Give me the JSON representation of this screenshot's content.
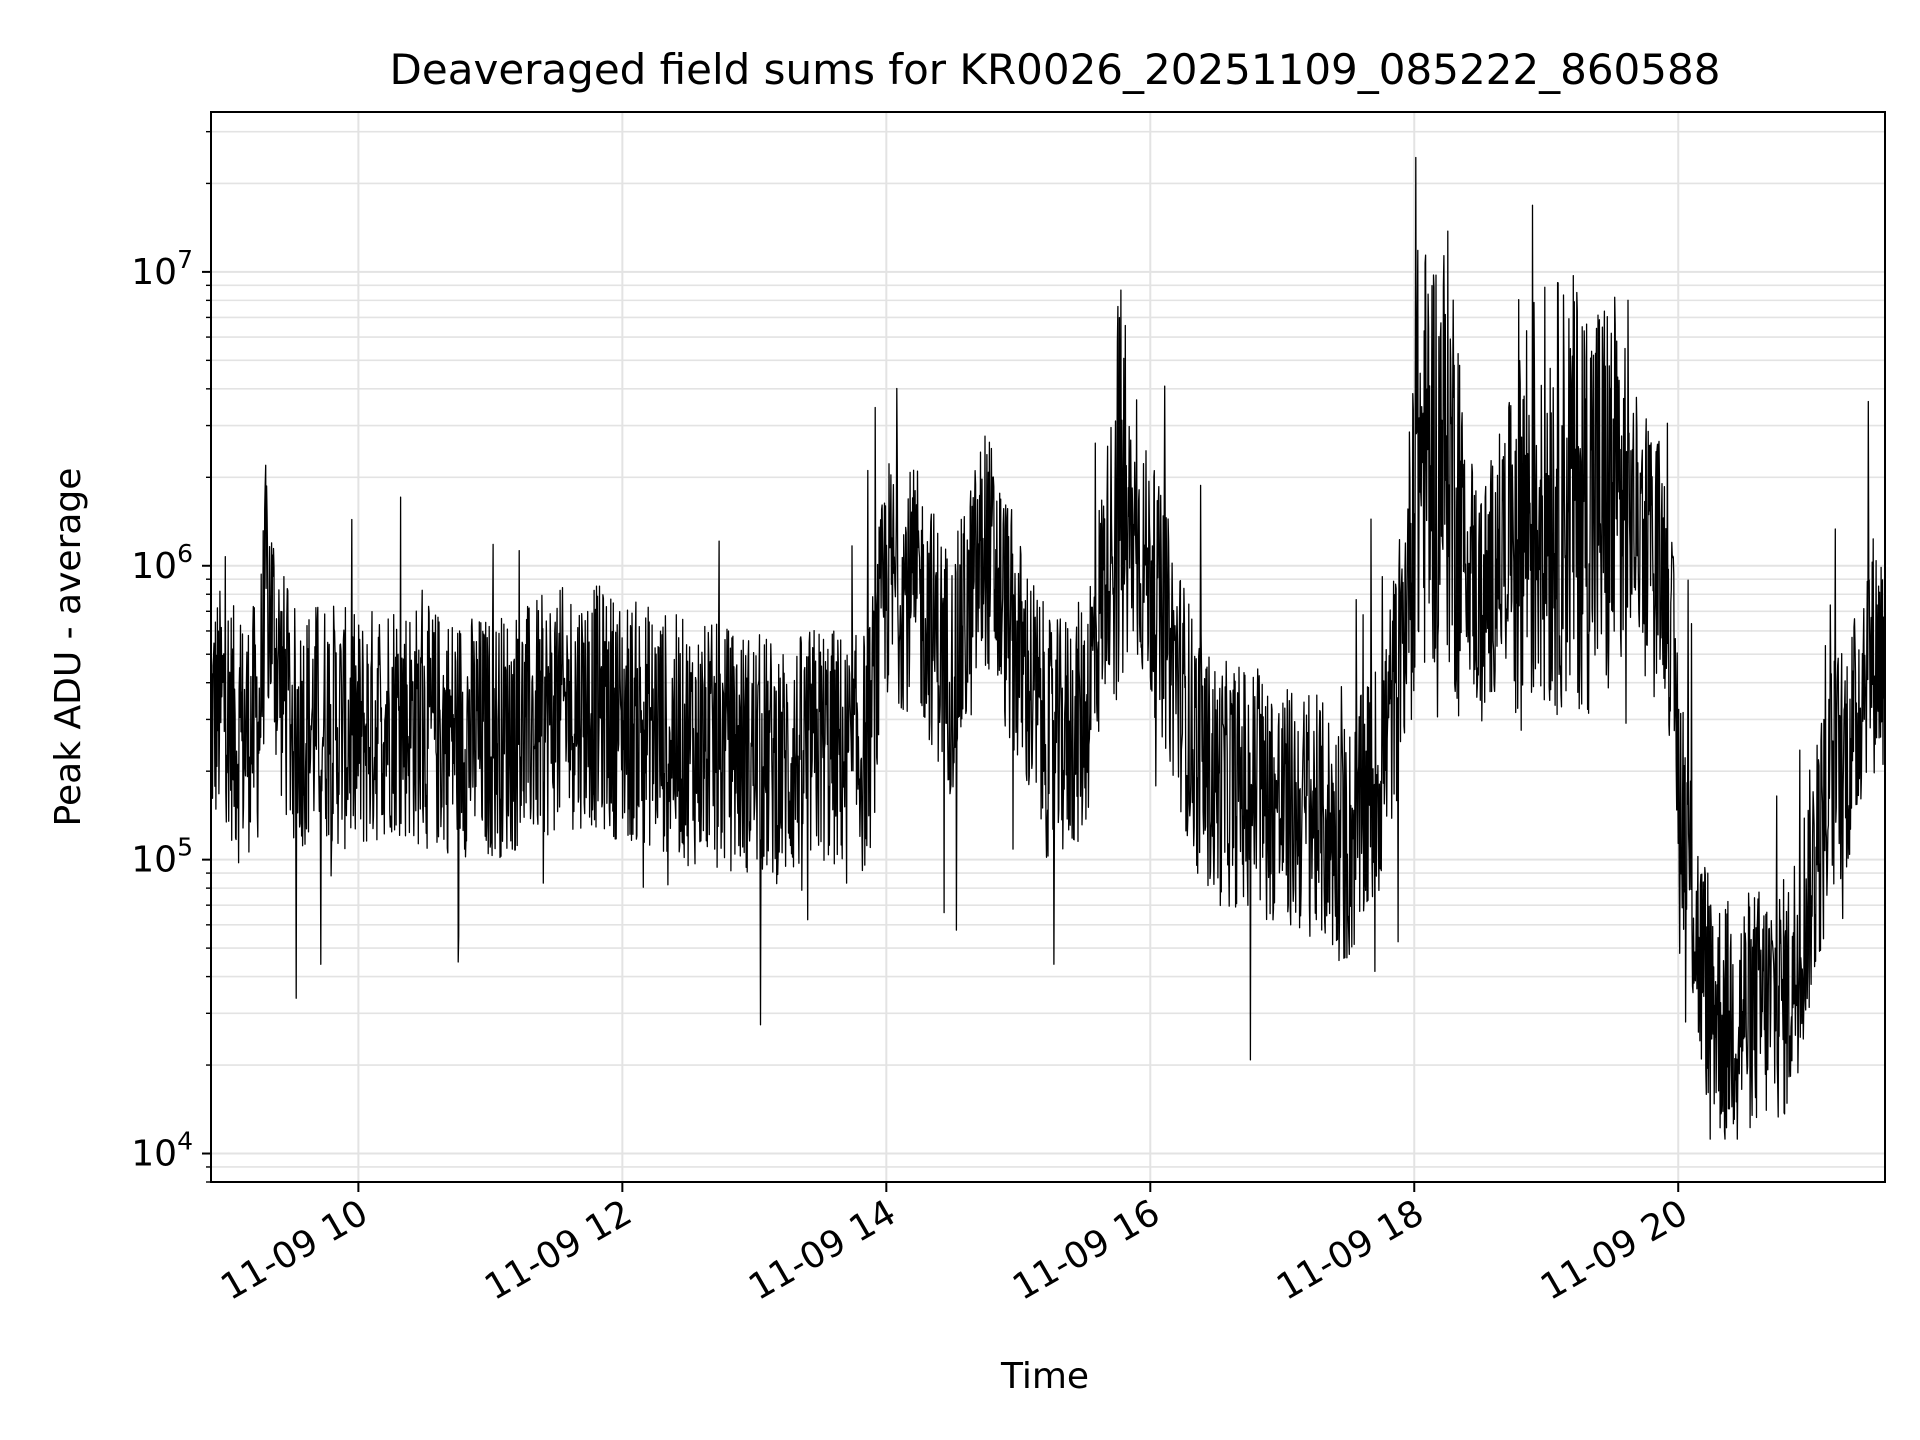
{
  "chart_data": {
    "type": "line",
    "title": "Deaveraged field sums for KR0026_20251109_085222_860588",
    "xlabel": "Time",
    "ylabel": "Peak ADU - average",
    "yscale": "log",
    "ylim": [
      8000,
      35000000
    ],
    "xlim": [
      "11-09 08:53",
      "11-09 21:34"
    ],
    "x_ticks": [
      "11-09 10",
      "11-09 12",
      "11-09 14",
      "11-09 16",
      "11-09 18",
      "11-09 20"
    ],
    "y_ticks": [
      {
        "base": "10",
        "exp": "4",
        "value": 10000
      },
      {
        "base": "10",
        "exp": "5",
        "value": 100000
      },
      {
        "base": "10",
        "exp": "6",
        "value": 1000000
      },
      {
        "base": "10",
        "exp": "7",
        "value": 10000000
      }
    ],
    "grid": true,
    "line_color": "#000000",
    "series": [
      {
        "x": [
          "08:53",
          "09:00",
          "09:05",
          "09:15",
          "09:18",
          "09:25",
          "09:30",
          "09:45",
          "10:00",
          "10:15",
          "10:30",
          "10:45",
          "11:00",
          "11:15",
          "11:30",
          "11:45",
          "12:00",
          "12:10",
          "12:30",
          "12:45",
          "13:00",
          "13:15",
          "13:30",
          "13:45",
          "13:52",
          "14:00",
          "14:15",
          "14:30",
          "14:45",
          "15:00",
          "15:15",
          "15:30",
          "15:45",
          "16:00",
          "16:10",
          "16:20",
          "16:30",
          "16:45",
          "17:00",
          "17:15",
          "17:30",
          "17:45",
          "17:48",
          "17:55",
          "18:00",
          "18:15",
          "18:30",
          "18:45",
          "19:00",
          "19:15",
          "19:30",
          "19:45",
          "19:55",
          "20:00",
          "20:10",
          "20:20",
          "20:30",
          "20:40",
          "20:50",
          "21:00",
          "21:10",
          "21:20",
          "21:25",
          "21:34"
        ],
        "y": [
          300000,
          350000,
          250000,
          300000,
          900000,
          400000,
          280000,
          300000,
          260000,
          320000,
          280000,
          270000,
          260000,
          280000,
          320000,
          340000,
          300000,
          290000,
          250000,
          240000,
          230000,
          210000,
          250000,
          220000,
          240000,
          900000,
          800000,
          420000,
          1200000,
          500000,
          240000,
          300000,
          1800000,
          900000,
          500000,
          250000,
          180000,
          180000,
          150000,
          140000,
          110000,
          200000,
          280000,
          550000,
          2200000,
          2600000,
          700000,
          1500000,
          1700000,
          1800000,
          1600000,
          1400000,
          900000,
          220000,
          45000,
          28000,
          30000,
          32000,
          34000,
          80000,
          190000,
          260000,
          500000,
          520000
        ]
      }
    ]
  }
}
